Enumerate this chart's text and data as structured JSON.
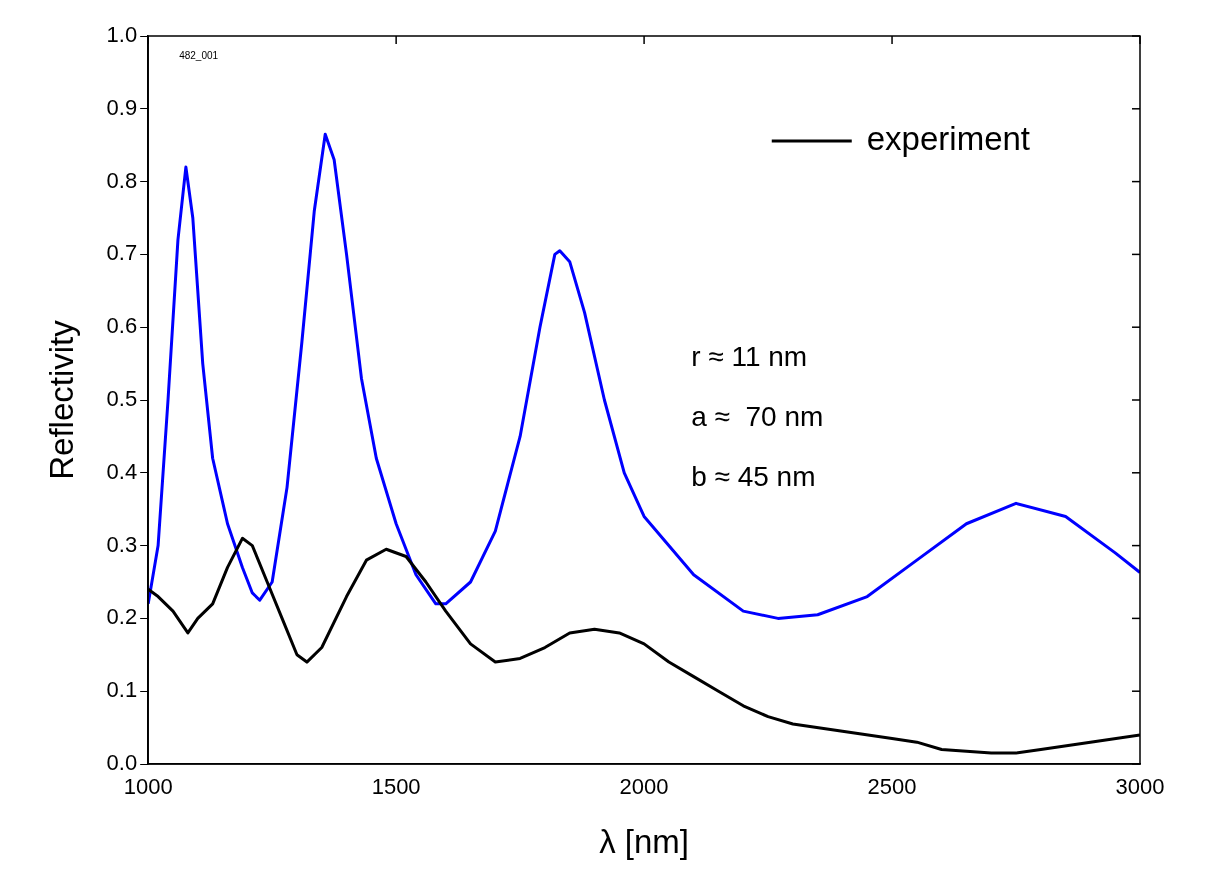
{
  "chart_data": {
    "type": "line",
    "xlabel": "λ [nm]",
    "ylabel": "Reflectivity",
    "xlim": [
      1000,
      3000
    ],
    "xticks": [
      1000,
      1500,
      2000,
      2500,
      3000
    ],
    "ylim": [
      0,
      1
    ],
    "yticks": [
      {
        "value": 0,
        "label": "0.0"
      },
      0.1,
      0.2,
      0.3,
      0.4,
      0.5,
      0.6,
      0.7,
      0.8,
      0.9,
      {
        "value": 1,
        "label": "1.0"
      }
    ],
    "grid": false,
    "legend": "top right",
    "marker": "none",
    "line_style": "solid",
    "annotations": [
      "482_001",
      "r ≈ 11 nm",
      "a ≈  70 nm",
      "b ≈ 45 nm"
    ],
    "series": [
      {
        "name": "experiment",
        "color": "#000000",
        "x": [
          1000,
          1020,
          1050,
          1080,
          1100,
          1130,
          1160,
          1190,
          1210,
          1240,
          1270,
          1300,
          1320,
          1350,
          1400,
          1440,
          1480,
          1520,
          1560,
          1600,
          1650,
          1700,
          1750,
          1800,
          1850,
          1900,
          1950,
          2000,
          2050,
          2100,
          2150,
          2200,
          2250,
          2300,
          2400,
          2500,
          2550,
          2600,
          2700,
          2750,
          2800,
          2900,
          3000
        ],
        "values": [
          0.24,
          0.23,
          0.21,
          0.18,
          0.2,
          0.22,
          0.27,
          0.31,
          0.3,
          0.25,
          0.2,
          0.15,
          0.14,
          0.16,
          0.23,
          0.28,
          0.295,
          0.285,
          0.25,
          0.21,
          0.165,
          0.14,
          0.145,
          0.16,
          0.18,
          0.185,
          0.18,
          0.165,
          0.14,
          0.12,
          0.1,
          0.08,
          0.065,
          0.055,
          0.045,
          0.035,
          0.03,
          0.02,
          0.015,
          0.015,
          0.02,
          0.03,
          0.04
        ]
      },
      {
        "color": "#0000ff",
        "x": [
          1000,
          1020,
          1040,
          1060,
          1076,
          1090,
          1110,
          1130,
          1160,
          1190,
          1210,
          1225,
          1250,
          1280,
          1310,
          1335,
          1357,
          1375,
          1400,
          1430,
          1460,
          1500,
          1540,
          1580,
          1600,
          1650,
          1700,
          1750,
          1790,
          1820,
          1830,
          1850,
          1880,
          1920,
          1960,
          2000,
          2100,
          2200,
          2270,
          2350,
          2450,
          2550,
          2650,
          2750,
          2850,
          2950,
          3000
        ],
        "values": [
          0.22,
          0.3,
          0.5,
          0.72,
          0.82,
          0.75,
          0.55,
          0.42,
          0.33,
          0.27,
          0.235,
          0.225,
          0.25,
          0.38,
          0.58,
          0.76,
          0.865,
          0.83,
          0.7,
          0.53,
          0.42,
          0.33,
          0.26,
          0.22,
          0.22,
          0.25,
          0.32,
          0.45,
          0.6,
          0.7,
          0.705,
          0.69,
          0.62,
          0.5,
          0.4,
          0.34,
          0.26,
          0.21,
          0.2,
          0.205,
          0.23,
          0.28,
          0.33,
          0.358,
          0.34,
          0.29,
          0.263
        ]
      }
    ]
  }
}
